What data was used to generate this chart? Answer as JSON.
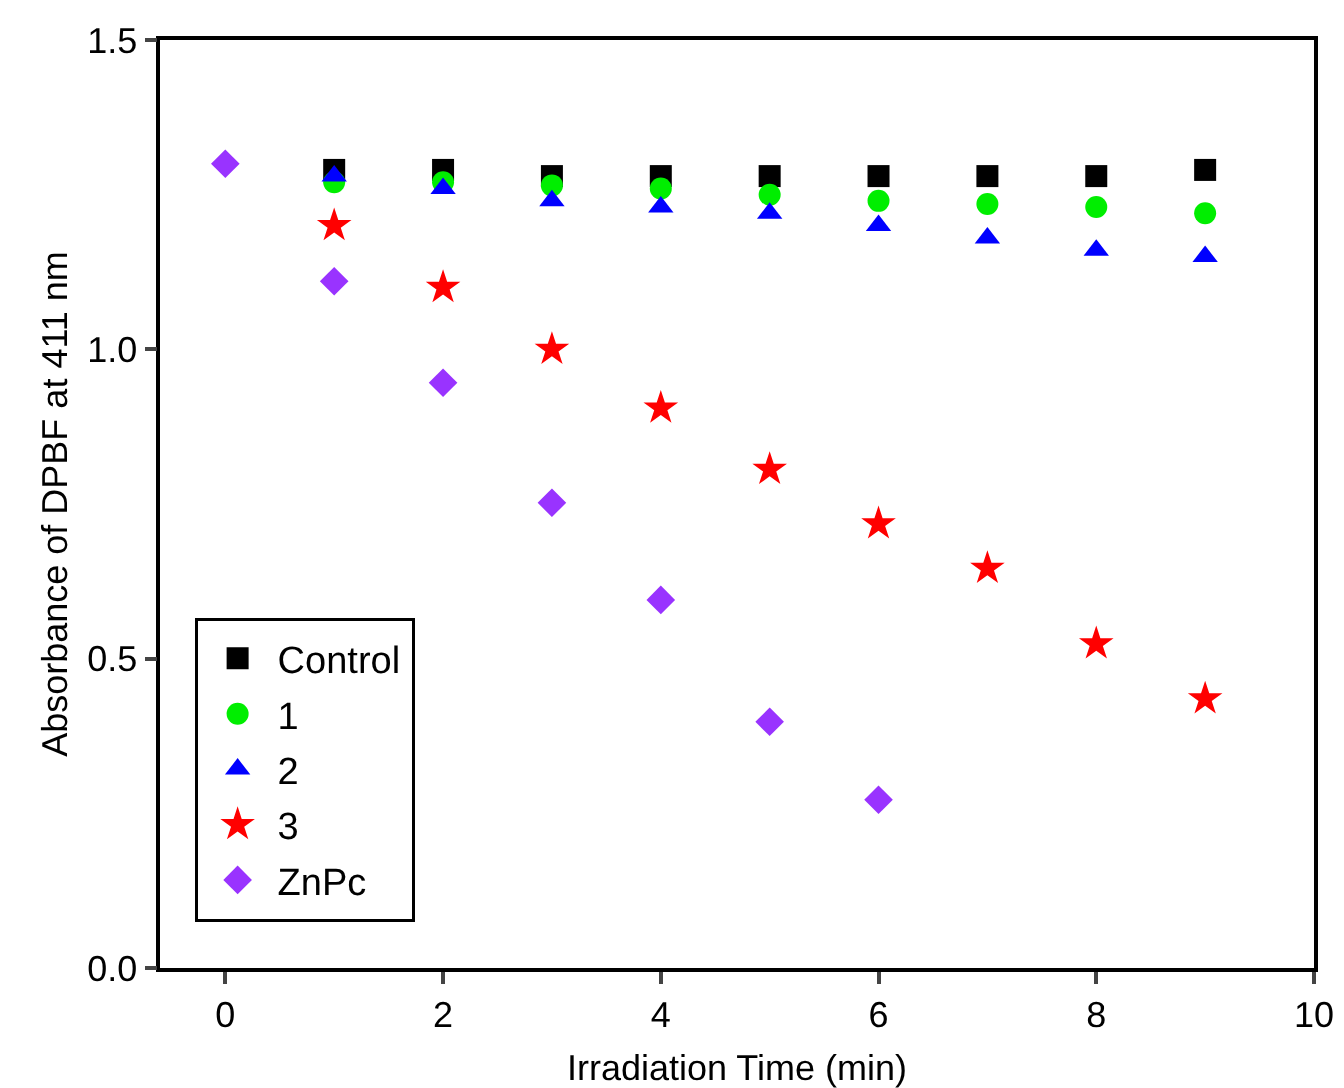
{
  "chart_data": {
    "type": "scatter",
    "xlabel": "Irradiation Time (min)",
    "ylabel": "Absorbance of DPBF at 411 nm",
    "x": [
      0,
      1,
      2,
      3,
      4,
      5,
      6,
      7,
      8,
      9
    ],
    "xlim": [
      -0.6,
      10
    ],
    "xticks": [
      0,
      2,
      4,
      6,
      8,
      10
    ],
    "ylim": [
      0,
      1.5
    ],
    "yticks": [
      {
        "value": 0,
        "label": "0.0"
      },
      0.5,
      {
        "value": 1,
        "label": "1.0"
      },
      1.5
    ],
    "series": [
      {
        "name": "Control",
        "color": "#000000",
        "marker": "square",
        "values": [
          null,
          1.29,
          1.29,
          1.28,
          1.28,
          1.28,
          1.28,
          1.28,
          1.28,
          1.29
        ]
      },
      {
        "name": "1",
        "color": "#00ee00",
        "marker": "circle",
        "values": [
          null,
          1.27,
          1.27,
          1.265,
          1.26,
          1.25,
          1.24,
          1.235,
          1.23,
          1.22
        ]
      },
      {
        "name": "2",
        "color": "#0000ff",
        "marker": "triangle",
        "values": [
          null,
          1.28,
          1.26,
          1.24,
          1.23,
          1.22,
          1.2,
          1.18,
          1.16,
          1.15
        ]
      },
      {
        "name": "3",
        "color": "#ff0000",
        "marker": "star",
        "values": [
          null,
          1.2,
          1.1,
          1.0,
          0.905,
          0.806,
          0.718,
          0.646,
          0.524,
          0.435
        ]
      },
      {
        "name": "ZnPc",
        "color": "#9933ff",
        "marker": "diamond",
        "values": [
          1.3,
          1.11,
          0.946,
          0.752,
          0.595,
          0.398,
          0.272,
          null,
          null,
          null
        ]
      }
    ],
    "legend": "bottom left",
    "grid": false
  }
}
